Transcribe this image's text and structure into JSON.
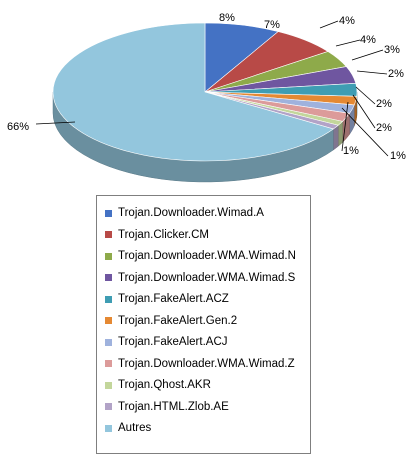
{
  "chart_data": {
    "type": "pie",
    "style": "3d",
    "slices": [
      {
        "label": "Trojan.Downloader.Wimad.A",
        "value": 8,
        "display": "8%",
        "color": "#4472c4"
      },
      {
        "label": "Trojan.Clicker.CM",
        "value": 7,
        "display": "7%",
        "color": "#b84a47"
      },
      {
        "label": "Trojan.Downloader.WMA.Wimad.N",
        "value": 4,
        "display": "4%",
        "color": "#8eaa4a"
      },
      {
        "label": "Trojan.Downloader.WMA.Wimad.S",
        "value": 4,
        "display": "4%",
        "color": "#6f56a0"
      },
      {
        "label": "Trojan.FakeAlert.ACZ",
        "value": 3,
        "display": "3%",
        "color": "#3f9db3"
      },
      {
        "label": "Trojan.FakeAlert.Gen.2",
        "value": 2,
        "display": "2%",
        "color": "#e58933"
      },
      {
        "label": "Trojan.FakeAlert.ACJ",
        "value": 2,
        "display": "2%",
        "color": "#9fb2dd"
      },
      {
        "label": "Trojan.Downloader.WMA.Wimad.Z",
        "value": 2,
        "display": "2%",
        "color": "#dc9b9a"
      },
      {
        "label": "Trojan.Qhost.AKR",
        "value": 1,
        "display": "1%",
        "color": "#c3d69b"
      },
      {
        "label": "Trojan.HTML.Zlob.AE",
        "value": 1,
        "display": "1%",
        "color": "#b2a3c7"
      },
      {
        "label": "Autres",
        "value": 66,
        "display": "66%",
        "color": "#93c6dd"
      }
    ],
    "legend_position": "bottom"
  }
}
